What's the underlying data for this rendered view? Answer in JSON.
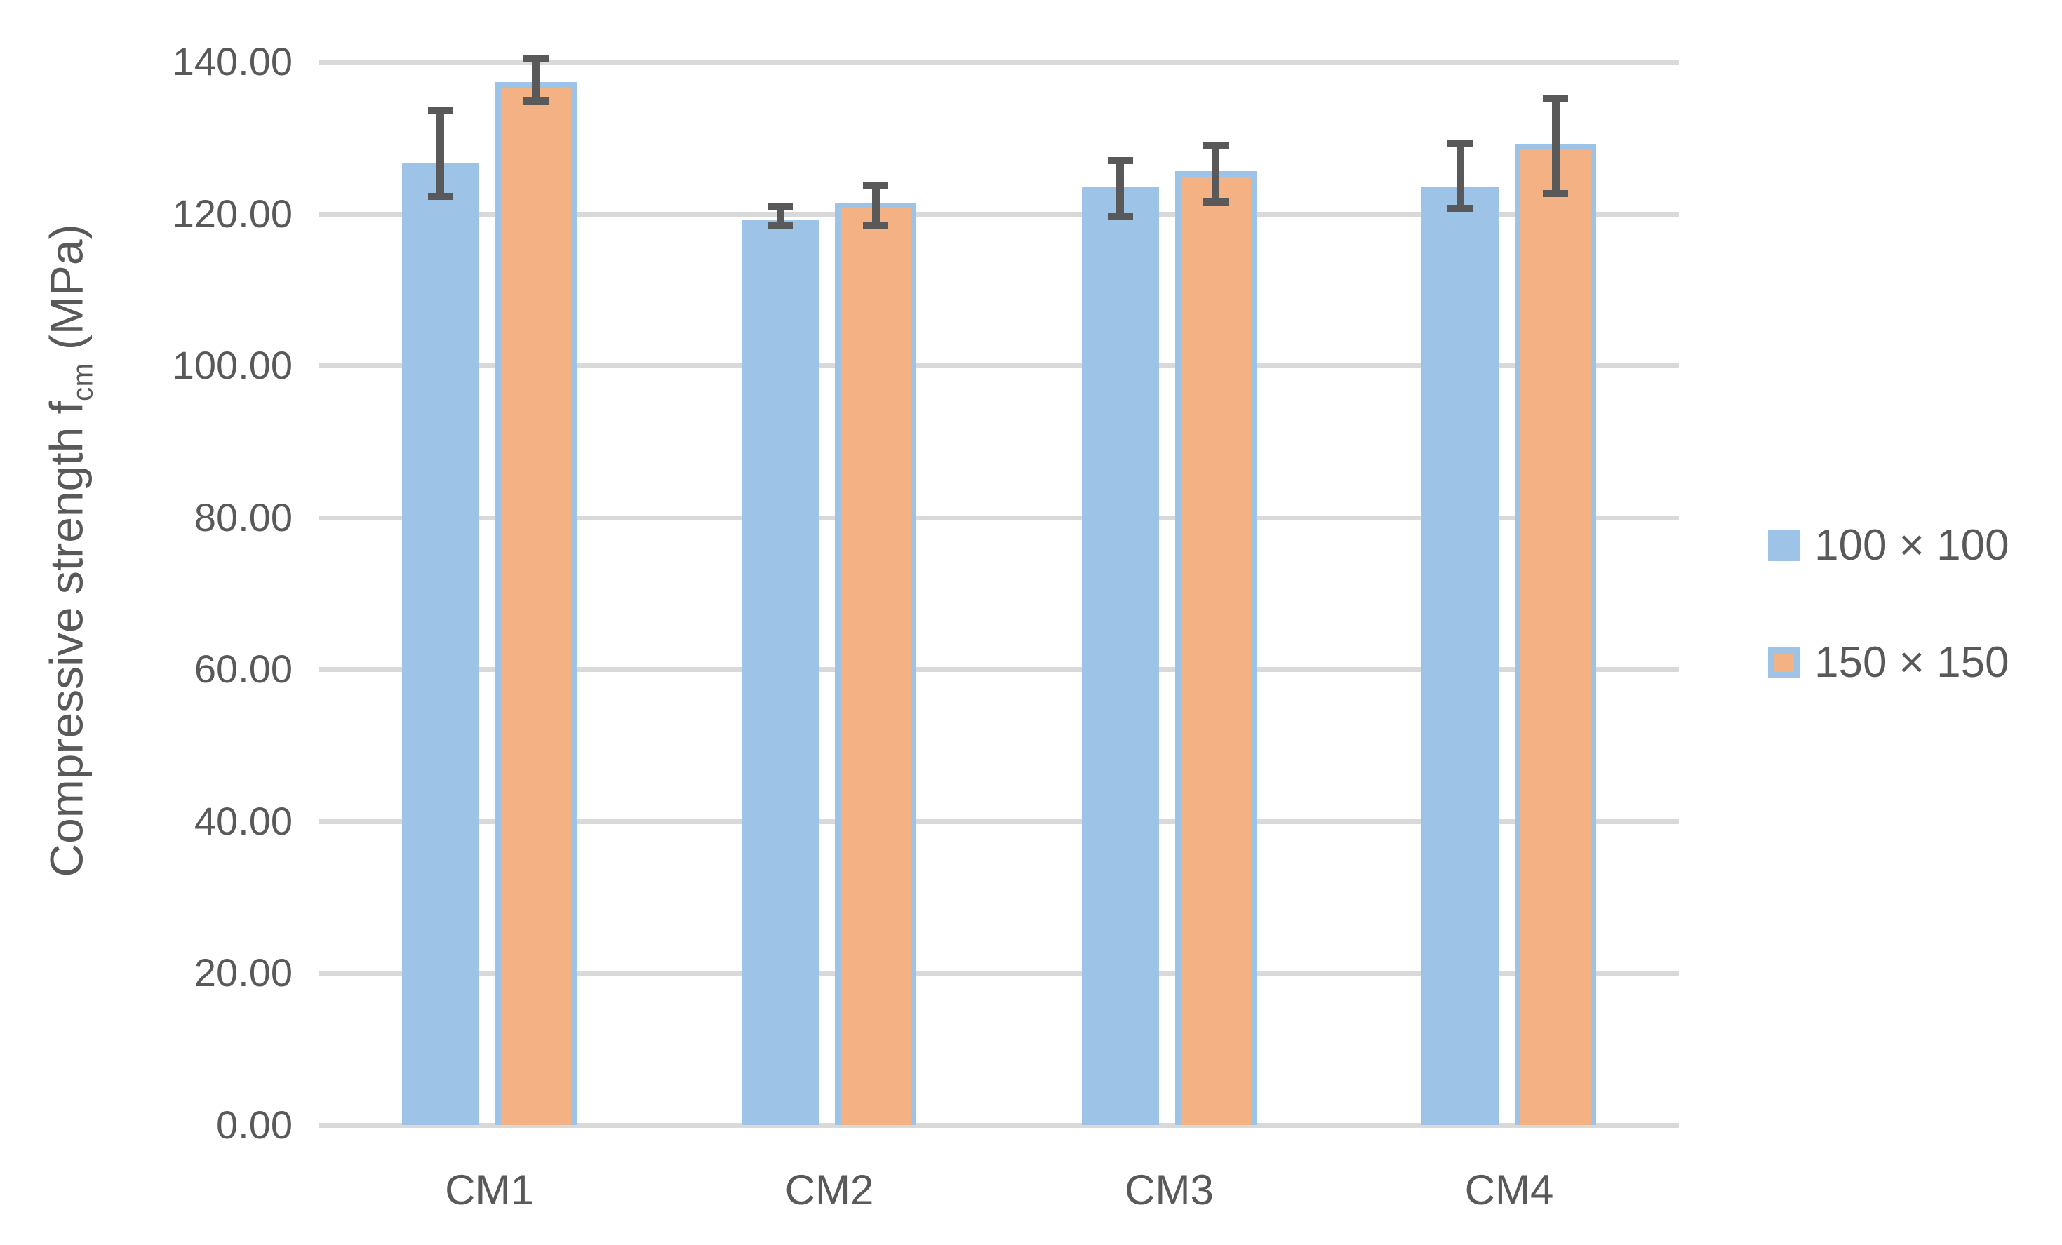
{
  "chart_data": {
    "type": "bar",
    "title": "",
    "ylabel": "Compressive strength f_cm (MPa)",
    "ylabel_parts": {
      "prefix": "Compressive strength f",
      "subscript": "cm",
      "suffix": " (MPa)"
    },
    "xlabel": "",
    "categories": [
      "CM1",
      "CM2",
      "CM3",
      "CM4"
    ],
    "series": [
      {
        "name": "100 × 100",
        "color": "#9DC3E6",
        "values": [
          126.6,
          119.2,
          123.6,
          123.6
        ],
        "error_up": [
          7.0,
          1.7,
          3.4,
          5.7
        ],
        "error_down": [
          4.3,
          0.7,
          3.9,
          2.9
        ]
      },
      {
        "name": "150 × 150",
        "color": "#F4B183",
        "border_color": "#9DC3E6",
        "values": [
          137.3,
          121.4,
          125.6,
          129.2
        ],
        "error_up": [
          3.1,
          2.3,
          3.4,
          6.0
        ],
        "error_down": [
          2.5,
          2.9,
          4.1,
          6.6
        ]
      }
    ],
    "ylim": [
      0,
      140
    ],
    "ytick_step": 20,
    "ytick_labels": [
      "0.00",
      "20.00",
      "40.00",
      "60.00",
      "80.00",
      "100.00",
      "120.00",
      "140.00"
    ],
    "grid": true,
    "legend_position": "right",
    "colors": {
      "gridline": "#D9D9D9",
      "error_bar": "#595959",
      "text": "#595959"
    }
  }
}
